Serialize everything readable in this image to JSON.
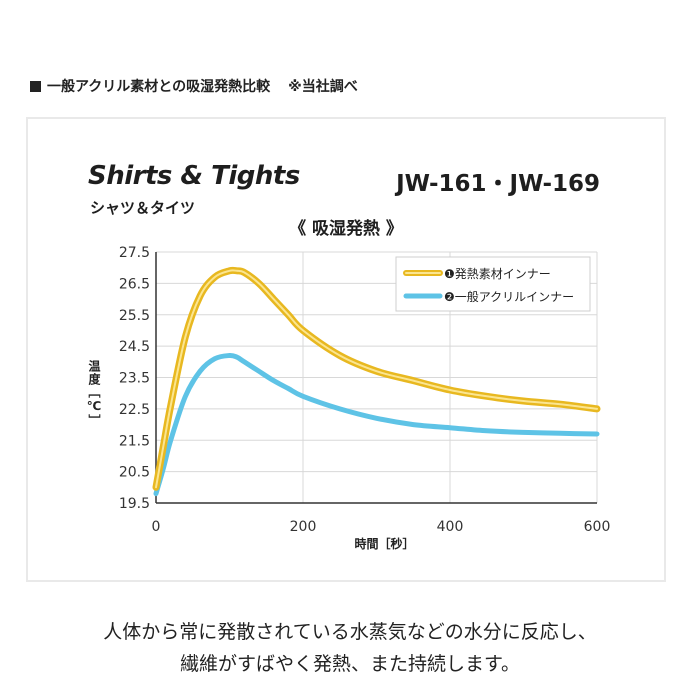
{
  "heading": {
    "label": "一般アクリル素材との吸湿発熱比較",
    "note": "※当社調べ"
  },
  "panel": {
    "title_en": "Shirts & Tights",
    "title_ja": "シャツ＆タイツ",
    "models": "JW-161・JW-169",
    "subtitle": "《 吸湿発熱 》"
  },
  "colors": {
    "series1": "#e8b820",
    "series1_core": "#fbe590",
    "series2": "#5ec3e6",
    "grid": "#d8d8d8",
    "axis": "#333333"
  },
  "chart_data": {
    "type": "line",
    "title": "吸湿発熱",
    "xlabel": "時間［秒］",
    "ylabel": "温度［℃］",
    "xlim": [
      0,
      600
    ],
    "ylim": [
      19.5,
      27.5
    ],
    "xticks": [
      0,
      200,
      400,
      600
    ],
    "xtick_labels": [
      "0",
      "200",
      "400",
      "600"
    ],
    "yticks": [
      19.5,
      20.5,
      21.5,
      22.5,
      23.5,
      24.5,
      25.5,
      26.5,
      27.5
    ],
    "ytick_labels": [
      "19.5",
      "20.5",
      "21.5",
      "22.5",
      "23.5",
      "24.5",
      "25.5",
      "26.5",
      "27.5"
    ],
    "grid": true,
    "legend_position": "top-right",
    "series": [
      {
        "name": "❶発熱素材インナー",
        "x": [
          0,
          10,
          20,
          40,
          60,
          80,
          100,
          110,
          120,
          140,
          160,
          180,
          200,
          250,
          300,
          350,
          400,
          450,
          500,
          550,
          600
        ],
        "y": [
          20.0,
          21.3,
          22.6,
          24.8,
          26.1,
          26.7,
          26.9,
          26.9,
          26.85,
          26.5,
          26.0,
          25.5,
          25.0,
          24.2,
          23.7,
          23.4,
          23.1,
          22.9,
          22.75,
          22.65,
          22.5
        ]
      },
      {
        "name": "❷一般アクリルインナー",
        "x": [
          0,
          10,
          20,
          40,
          60,
          80,
          100,
          110,
          120,
          140,
          160,
          180,
          200,
          250,
          300,
          350,
          400,
          450,
          500,
          550,
          600
        ],
        "y": [
          19.8,
          20.6,
          21.5,
          22.9,
          23.7,
          24.1,
          24.2,
          24.15,
          24.0,
          23.7,
          23.4,
          23.15,
          22.9,
          22.5,
          22.2,
          22.0,
          21.9,
          21.8,
          21.75,
          21.72,
          21.7
        ]
      }
    ]
  },
  "footer": {
    "line1": "人体から常に発散されている水蒸気などの水分に反応し、",
    "line2": "繊維がすばやく発熱、また持続します。"
  }
}
